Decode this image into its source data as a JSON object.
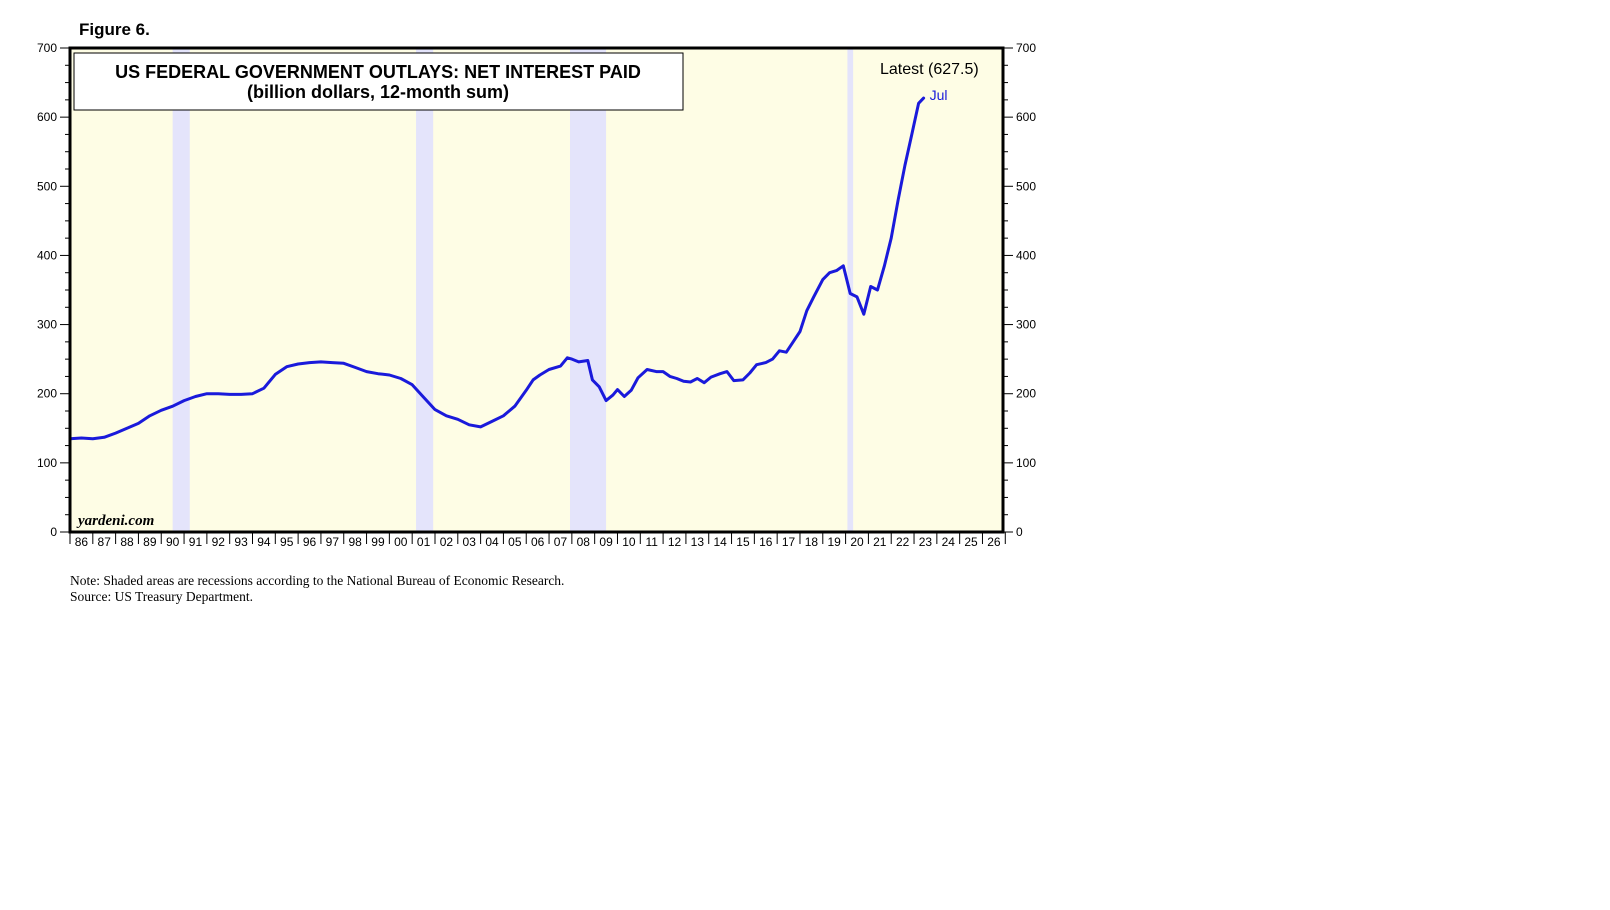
{
  "figure_label": "Figure 6.",
  "latest_label": "Latest (627.5)",
  "latest_month": "Jul",
  "brand": "yardeni.com",
  "notes": [
    "Note: Shaded areas are recessions according to the National Bureau of Economic Research.",
    "Source: US Treasury Department."
  ],
  "colors": {
    "plot_background": "#fefde5",
    "recession_shade": "#e4e4fb",
    "series_line": "#1a1adb",
    "frame": "#000000"
  },
  "chart_data": {
    "type": "line",
    "title": "US FEDERAL GOVERNMENT OUTLAYS: NET INTEREST PAID",
    "subtitle": "(billion dollars, 12-month sum)",
    "xlabel": "",
    "ylabel": "",
    "xlim": [
      1986.0,
      2026.9
    ],
    "ylim": [
      0,
      700
    ],
    "y_ticks": [
      0,
      100,
      200,
      300,
      400,
      500,
      600,
      700
    ],
    "x_tick_labels": [
      "86",
      "87",
      "88",
      "89",
      "90",
      "91",
      "92",
      "93",
      "94",
      "95",
      "96",
      "97",
      "98",
      "99",
      "00",
      "01",
      "02",
      "03",
      "04",
      "05",
      "06",
      "07",
      "08",
      "09",
      "10",
      "11",
      "12",
      "13",
      "14",
      "15",
      "16",
      "17",
      "18",
      "19",
      "20",
      "21",
      "22",
      "23",
      "24",
      "25",
      "26"
    ],
    "grid": false,
    "recessions": [
      [
        1990.5,
        1991.25
      ],
      [
        2001.17,
        2001.92
      ],
      [
        2007.92,
        2009.5
      ],
      [
        2020.08,
        2020.33
      ]
    ],
    "series": [
      {
        "x": [
          1986.0,
          1986.5,
          1987.0,
          1987.5,
          1988.0,
          1988.5,
          1989.0,
          1989.5,
          1990.0,
          1990.5,
          1991.0,
          1991.5,
          1992.0,
          1992.5,
          1993.0,
          1993.5,
          1994.0,
          1994.5,
          1995.0,
          1995.5,
          1996.0,
          1996.5,
          1997.0,
          1997.5,
          1998.0,
          1998.5,
          1999.0,
          1999.5,
          2000.0,
          2000.5,
          2001.0,
          2001.5,
          2002.0,
          2002.5,
          2003.0,
          2003.5,
          2004.0,
          2004.5,
          2005.0,
          2005.5,
          2006.0,
          2006.3,
          2006.6,
          2007.0,
          2007.5,
          2007.8,
          2008.0,
          2008.3,
          2008.7,
          2008.9,
          2009.2,
          2009.5,
          2009.8,
          2010.0,
          2010.3,
          2010.6,
          2010.9,
          2011.3,
          2011.7,
          2012.0,
          2012.3,
          2012.6,
          2012.9,
          2013.2,
          2013.5,
          2013.8,
          2014.1,
          2014.5,
          2014.8,
          2015.1,
          2015.5,
          2015.8,
          2016.1,
          2016.5,
          2016.8,
          2017.1,
          2017.4,
          2017.7,
          2018.0,
          2018.3,
          2018.6,
          2019.0,
          2019.3,
          2019.6,
          2019.9,
          2020.2,
          2020.5,
          2020.8,
          2021.1,
          2021.4,
          2021.7,
          2022.0,
          2022.3,
          2022.6,
          2022.9,
          2023.2,
          2023.42
        ],
        "values": [
          135,
          136,
          135,
          137,
          143,
          150,
          157,
          168,
          176,
          182,
          190,
          196,
          200,
          200,
          199,
          199,
          200,
          208,
          228,
          239,
          243,
          245,
          246,
          245,
          244,
          238,
          232,
          229,
          227,
          222,
          213,
          195,
          177,
          168,
          163,
          155,
          152,
          160,
          168,
          182,
          205,
          220,
          227,
          235,
          240,
          252,
          250,
          246,
          248,
          220,
          210,
          190,
          198,
          206,
          196,
          205,
          223,
          235,
          232,
          232,
          225,
          222,
          218,
          217,
          222,
          216,
          224,
          229,
          232,
          219,
          220,
          230,
          242,
          245,
          250,
          262,
          260,
          275,
          290,
          320,
          340,
          365,
          375,
          378,
          385,
          345,
          340,
          315,
          355,
          350,
          385,
          425,
          480,
          530,
          575,
          620,
          627.5
        ]
      }
    ]
  }
}
